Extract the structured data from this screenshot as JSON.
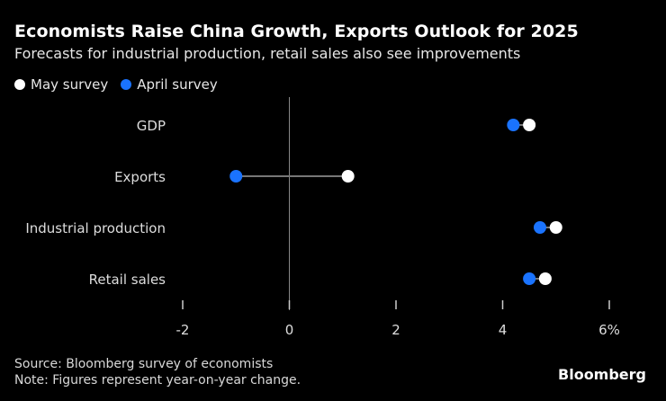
{
  "chart_data": {
    "type": "dot",
    "title": "Economists Raise China Growth, Exports Outlook for 2025",
    "subtitle": "Forecasts for industrial production, retail sales also see improvements",
    "categories": [
      "GDP",
      "Exports",
      "Industrial production",
      "Retail sales"
    ],
    "series": [
      {
        "name": "May survey",
        "color": "#ffffff",
        "values": [
          4.5,
          1.1,
          5.0,
          4.8
        ]
      },
      {
        "name": "April survey",
        "color": "#1a73ff",
        "values": [
          4.2,
          -1.0,
          4.7,
          4.5
        ]
      }
    ],
    "xlim": [
      -2,
      6
    ],
    "xticks": [
      -2,
      0,
      2,
      4,
      6
    ],
    "xtick_labels": [
      "-2",
      "0",
      "2",
      "4",
      "6%"
    ],
    "legend_position": "top-left",
    "grid": false
  },
  "footer": {
    "source": "Source: Bloomberg survey of economists",
    "note": "Note: Figures represent year-on-year change."
  },
  "logo": "Bloomberg"
}
